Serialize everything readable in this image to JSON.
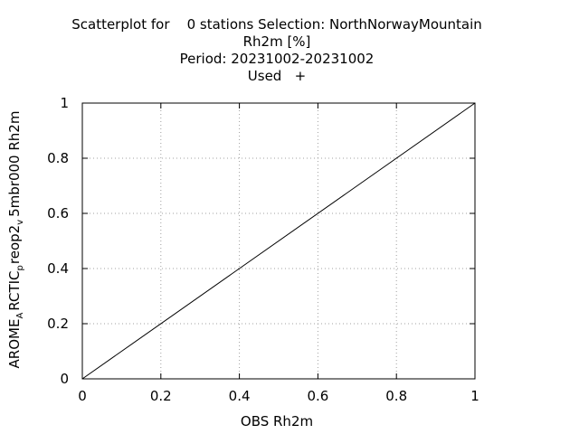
{
  "chart_data": {
    "type": "scatter",
    "title_lines": [
      "Scatterplot for    0 stations Selection: NorthNorwayMountain",
      "Rh2m [%]",
      "Period: 20231002-20231002",
      "Used   +"
    ],
    "xlabel": "OBS Rh2m",
    "ylabel": {
      "base": "AROME",
      "sub1": "A",
      "mid": "RCTIC",
      "sub2": "p",
      "mid2": "reop2",
      "sub3": "v",
      "end": "5mbr000 Rh2m"
    },
    "xlim": [
      0,
      1
    ],
    "ylim": [
      0,
      1
    ],
    "xticks": [
      "0",
      "0.2",
      "0.4",
      "0.6",
      "0.8",
      "1"
    ],
    "yticks": [
      "0",
      "0.2",
      "0.4",
      "0.6",
      "0.8",
      "1"
    ],
    "grid": true,
    "reference_line": {
      "x": [
        0,
        1
      ],
      "y": [
        0,
        1
      ]
    },
    "points": []
  }
}
